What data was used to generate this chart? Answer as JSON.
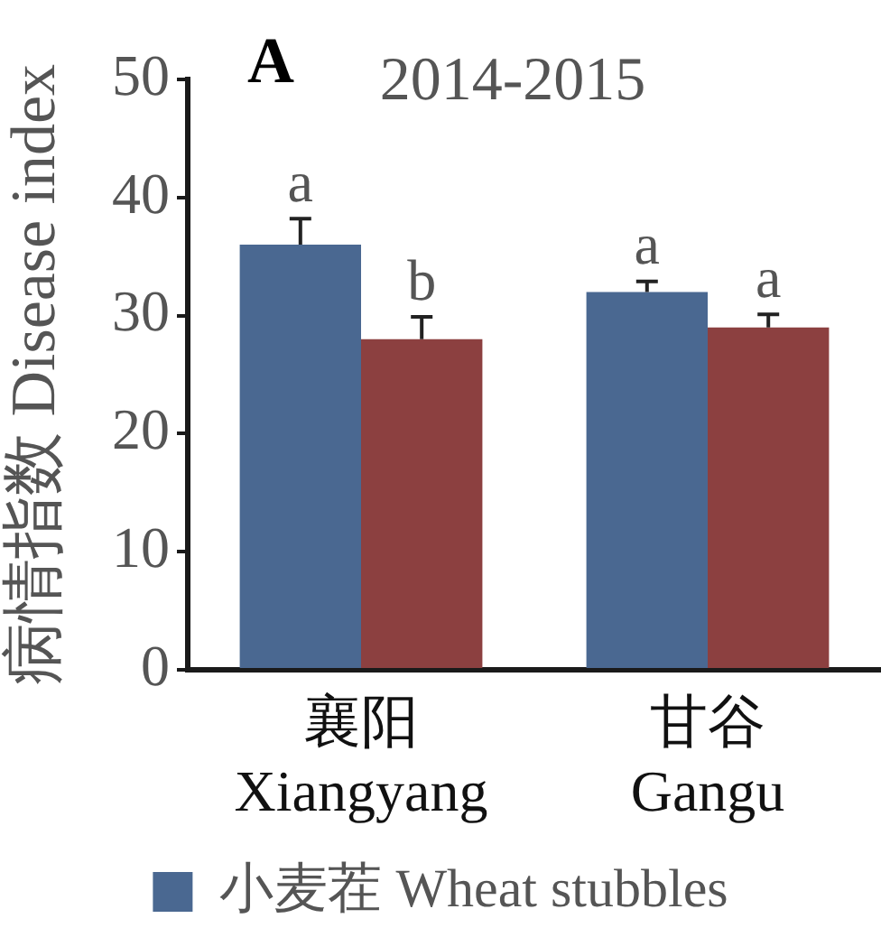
{
  "chart_data": {
    "type": "bar",
    "title": "2014-2015",
    "ylabel": "病情指数 Disease index",
    "annotations": [
      "A"
    ],
    "categories": [
      "襄阳\nXiangyang",
      "甘谷\nGangu"
    ],
    "series": [
      {
        "name": "小麦茬 Wheat stubbles",
        "color": "#4a6891",
        "values": [
          36,
          32
        ],
        "errors": [
          [
            36,
            38.2
          ],
          [
            32,
            32.9
          ]
        ],
        "value_labels": [
          "a",
          "a"
        ]
      },
      {
        "color": "#8c4040",
        "values": [
          28,
          29
        ],
        "errors": [
          [
            28,
            29.9
          ],
          [
            29,
            30.1
          ]
        ],
        "value_labels": [
          "b",
          "a"
        ]
      }
    ],
    "ylim": [
      0,
      50
    ],
    "yticks": [
      0,
      10,
      20,
      30,
      40,
      50
    ],
    "legend": "bottom"
  }
}
